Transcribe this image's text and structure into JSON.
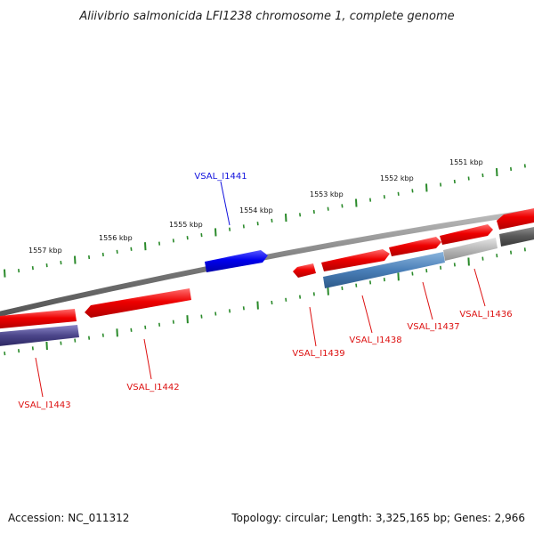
{
  "title": "Aliivibrio salmonicida LFI1238 chromosome 1, complete genome",
  "footer": {
    "accession": "Accession: NC_011312",
    "topology": "Topology: circular; Length: 3,325,165 bp; Genes: 2,966"
  },
  "colors": {
    "forward_gene": "#ee1111",
    "reverse_gene": "#ee1111",
    "highlight_gene": "#0000ee",
    "rna_blue": "#4a7fb8",
    "rna_purple": "#4a4488",
    "rna_grey": "#b8b8b8",
    "rna_dark": "#5a5a5a",
    "backbone": "#808080",
    "ticks": "#2a8a2a",
    "label_red": "#dd1111",
    "label_blue": "#1111dd"
  },
  "kbp_labels": [
    "1557 kbp",
    "1556 kbp",
    "1555 kbp",
    "1554 kbp",
    "1553 kbp",
    "1552 kbp",
    "1551 kbp"
  ],
  "genes": [
    {
      "name": "VSAL_I1441",
      "strand": "forward",
      "color": "blue"
    },
    {
      "name": "VSAL_I1443",
      "strand": "reverse",
      "color": "red"
    },
    {
      "name": "VSAL_I1442",
      "strand": "reverse",
      "color": "red"
    },
    {
      "name": "VSAL_I1439",
      "strand": "reverse",
      "color": "red"
    },
    {
      "name": "VSAL_I1438",
      "strand": "forward",
      "color": "red"
    },
    {
      "name": "VSAL_I1437",
      "strand": "forward",
      "color": "red"
    },
    {
      "name": "VSAL_I1436",
      "strand": "forward",
      "color": "red"
    }
  ]
}
